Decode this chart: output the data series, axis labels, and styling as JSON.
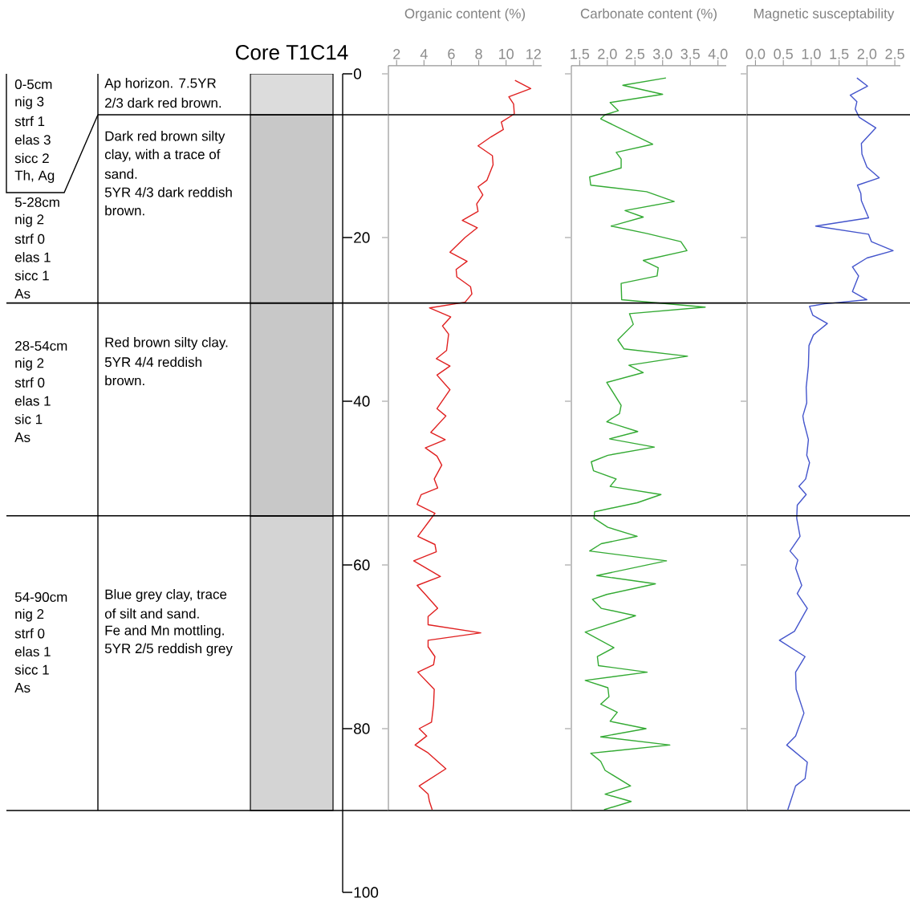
{
  "chart_data": [
    {
      "type": "bar",
      "title": "Core T1C14",
      "stacked": true,
      "categories": [
        null
      ],
      "ylim": [
        100,
        0
      ],
      "yticks": [
        0,
        20,
        40,
        60,
        80,
        100
      ],
      "tick_labels": "y",
      "series": [
        {
          "color": "#dcdcdc",
          "values": [
            5
          ]
        },
        {
          "color": "#c8c8c8",
          "values": [
            23
          ]
        },
        {
          "color": "#c8c8c8",
          "values": [
            26
          ]
        },
        {
          "color": "#d4d4d4",
          "values": [
            36
          ]
        }
      ],
      "ref_lines": [
        {
          "axis": "y",
          "value": 5
        },
        {
          "axis": "y",
          "value": 28
        },
        {
          "axis": "y",
          "value": 54
        },
        {
          "axis": "y",
          "value": 90
        }
      ],
      "annotations": [
        "0-5cm",
        "nig 3",
        "strf 1",
        "elas 3",
        "sicc 2",
        "Th, Ag",
        "Ap horizon. 7.5YR",
        "2/3 dark red brown.",
        "5-28cm",
        "nig 2",
        "strf 0",
        "elas 1",
        "sicc 1",
        "As",
        "Dark red brown silty",
        "clay, with a trace of",
        "sand.",
        "5YR 4/3 dark reddish",
        "brown.",
        "28-54cm",
        "nig 2",
        "strf 0",
        "elas 1",
        "sic 1",
        "As",
        "Red brown silty clay.",
        "5YR 4/4 reddish",
        "brown.",
        "54-90cm",
        "nig 2",
        "strf 0",
        "elas 1",
        "sicc 1",
        "As",
        "Blue grey clay, trace",
        "of silt and sand.",
        "Fe and Mn mottling.",
        "5YR 2/5 reddish grey"
      ]
    },
    {
      "type": "line",
      "title": "Organic content (%)",
      "color": "#e02020",
      "xlim": [
        1.4,
        12.6
      ],
      "ylim": [
        90,
        -1
      ],
      "xticks": [
        2,
        4,
        6,
        8,
        10,
        12
      ],
      "yticks": [
        0,
        20,
        40,
        60,
        80
      ],
      "tick_labels": "x",
      "ref_lines": [
        {
          "axis": "y",
          "value": 5
        },
        {
          "axis": "y",
          "value": 28
        },
        {
          "axis": "y",
          "value": 54
        },
        {
          "axis": "y",
          "value": 90
        }
      ],
      "x": [
        10.65,
        11.8,
        10.2,
        10.55,
        10.6,
        9.65,
        9.8,
        8.9,
        7.95,
        9.0,
        9.05,
        8.6,
        7.95,
        8.3,
        7.85,
        7.95,
        6.8,
        7.9,
        7.0,
        5.9,
        7.15,
        6.35,
        6.4,
        7.4,
        7.5,
        7.0,
        4.4,
        5.95,
        5.35,
        5.8,
        5.65,
        4.9,
        5.9,
        4.95,
        5.9,
        4.95,
        5.6,
        4.5,
        5.55,
        4.1,
        4.95,
        5.3,
        4.75,
        5.0,
        3.8,
        3.5,
        4.8,
        3.55,
        4.8,
        4.9,
        3.25,
        5.2,
        3.5,
        4.1,
        5.0,
        4.3,
        4.3,
        8.15,
        4.3,
        4.3,
        4.8,
        4.7,
        3.55,
        4.75,
        4.7,
        4.55,
        3.65,
        4.2,
        3.35,
        4.25,
        5.6,
        3.65,
        4.3,
        4.4,
        4.6
      ],
      "values": [
        0.8,
        1.8,
        2.8,
        3.7,
        4.9,
        5.9,
        6.8,
        7.7,
        8.8,
        10.0,
        11.1,
        13.0,
        13.8,
        14.8,
        15.9,
        16.8,
        17.9,
        18.8,
        20.0,
        21.8,
        22.9,
        23.9,
        24.8,
        26.0,
        26.9,
        27.9,
        28.6,
        29.7,
        30.8,
        31.8,
        33.8,
        34.8,
        35.7,
        36.8,
        38.6,
        40.9,
        41.8,
        43.8,
        44.7,
        45.7,
        46.7,
        47.8,
        49.5,
        50.6,
        51.4,
        52.6,
        53.7,
        56.5,
        57.5,
        58.4,
        59.5,
        61.4,
        62.5,
        63.6,
        65.3,
        66.3,
        67.3,
        68.3,
        69.2,
        70.0,
        71.2,
        72.2,
        73.1,
        75.2,
        77.1,
        79.2,
        80.0,
        80.9,
        82.0,
        82.9,
        84.9,
        87.0,
        88.0,
        88.9,
        89.9
      ]
    },
    {
      "type": "line",
      "title": "Carbonate content (%)",
      "color": "#33aa33",
      "xlim": [
        1.35,
        4.15
      ],
      "ylim": [
        90,
        -1
      ],
      "xticks": [
        1.5,
        {
          "value": 2,
          "label": "2.0"
        },
        2.5,
        {
          "value": 3,
          "label": "3.0"
        },
        3.5,
        {
          "value": 4,
          "label": "4.0"
        }
      ],
      "yticks": [
        0,
        20,
        40,
        60,
        80
      ],
      "tick_labels": "x",
      "ref_lines": [
        {
          "axis": "y",
          "value": 5
        },
        {
          "axis": "y",
          "value": 28
        },
        {
          "axis": "y",
          "value": 54
        },
        {
          "axis": "y",
          "value": 90
        }
      ],
      "x": [
        3.06,
        2.28,
        3.0,
        2.05,
        2.2,
        1.96,
        1.88,
        2.82,
        2.16,
        2.25,
        2.25,
        1.68,
        1.7,
        2.71,
        3.21,
        2.32,
        2.65,
        2.07,
        2.71,
        3.33,
        3.44,
        2.65,
        2.92,
        2.9,
        2.25,
        2.26,
        3.77,
        2.4,
        2.47,
        2.19,
        2.3,
        3.45,
        2.39,
        2.65,
        1.99,
        2.25,
        2.22,
        1.99,
        2.55,
        2.04,
        2.85,
        2.01,
        1.71,
        1.75,
        2.16,
        2.05,
        2.97,
        2.54,
        1.77,
        1.76,
        2.01,
        2.54,
        1.89,
        1.68,
        3.07,
        1.81,
        2.87,
        1.99,
        1.73,
        1.89,
        2.51,
        1.6,
        2.12,
        1.82,
        1.84,
        2.72,
        1.6,
        2.01,
        2.03,
        1.88,
        2.18,
        2.05,
        2.7,
        1.88,
        3.13,
        1.7,
        1.88,
        1.96,
        2.42,
        1.96,
        2.43,
        1.94
      ],
      "values": [
        0.5,
        1.4,
        2.5,
        3.5,
        4.5,
        5.0,
        5.5,
        8.6,
        9.6,
        10.4,
        11.5,
        12.6,
        13.6,
        14.4,
        15.6,
        16.7,
        17.5,
        18.6,
        19.5,
        20.5,
        21.6,
        22.8,
        23.7,
        24.7,
        25.6,
        27.6,
        28.5,
        29.3,
        30.6,
        32.5,
        33.6,
        34.5,
        35.6,
        36.5,
        37.7,
        40.5,
        41.5,
        42.5,
        43.7,
        44.6,
        45.6,
        46.6,
        47.4,
        48.5,
        49.5,
        50.4,
        51.4,
        52.4,
        53.5,
        54.3,
        55.4,
        56.5,
        57.4,
        58.3,
        59.5,
        61.3,
        62.3,
        63.6,
        64.2,
        65.3,
        66.2,
        68.2,
        70.1,
        71.2,
        72.3,
        73.1,
        74.1,
        75.0,
        76.1,
        77.0,
        78.0,
        79.1,
        80.0,
        81.0,
        82.0,
        83.0,
        84.0,
        85.1,
        87.0,
        88.0,
        88.9,
        89.9
      ]
    },
    {
      "type": "line",
      "title": "Magnetic susceptability",
      "color": "#4455cc",
      "xlim": [
        -0.15,
        2.6
      ],
      "ylim": [
        90,
        -1
      ],
      "xticks": [
        {
          "value": 0,
          "label": "0.0"
        },
        0.5,
        {
          "value": 1,
          "label": "1.0"
        },
        1.5,
        {
          "value": 2,
          "label": "2.0"
        },
        2.5
      ],
      "yticks": [
        0,
        20,
        40,
        60,
        80
      ],
      "tick_labels": "x",
      "ref_lines": [
        {
          "axis": "y",
          "value": 5
        },
        {
          "axis": "y",
          "value": 28
        },
        {
          "axis": "y",
          "value": 54
        },
        {
          "axis": "y",
          "value": 90
        }
      ],
      "x": [
        1.82,
        2.01,
        1.7,
        1.82,
        1.79,
        1.86,
        2.16,
        1.9,
        1.91,
        2.0,
        2.22,
        1.83,
        1.89,
        1.9,
        2.03,
        1.08,
        2.03,
        2.08,
        2.47,
        2.0,
        1.74,
        1.85,
        1.74,
        2.0,
        1.24,
        0.97,
        1.03,
        1.29,
        1.04,
        0.96,
        0.95,
        0.91,
        0.92,
        0.85,
        0.87,
        0.95,
        0.92,
        0.97,
        0.9,
        0.78,
        0.91,
        0.75,
        0.74,
        0.8,
        0.62,
        0.76,
        0.72,
        0.83,
        0.75,
        0.93,
        0.7,
        0.43,
        0.89,
        0.72,
        0.73,
        0.87,
        0.72,
        0.56,
        0.93,
        0.89,
        0.72,
        0.58
      ],
      "values": [
        0.5,
        1.5,
        2.6,
        3.4,
        4.3,
        5.3,
        6.6,
        8.5,
        9.8,
        11.4,
        12.7,
        13.6,
        14.6,
        15.5,
        17.6,
        18.6,
        19.6,
        20.5,
        21.6,
        22.5,
        23.6,
        24.7,
        26.6,
        27.6,
        28.1,
        28.4,
        29.5,
        30.5,
        31.9,
        33.2,
        35.7,
        38.3,
        40.2,
        41.8,
        42.6,
        44.7,
        46.6,
        47.5,
        49.5,
        50.4,
        51.4,
        52.7,
        54.3,
        56.5,
        58.3,
        59.4,
        60.4,
        62.5,
        63.5,
        65.3,
        68.1,
        69.2,
        71.2,
        73.1,
        75.2,
        78.1,
        80.9,
        82.0,
        84.1,
        86.1,
        87.0,
        89.9
      ]
    }
  ]
}
